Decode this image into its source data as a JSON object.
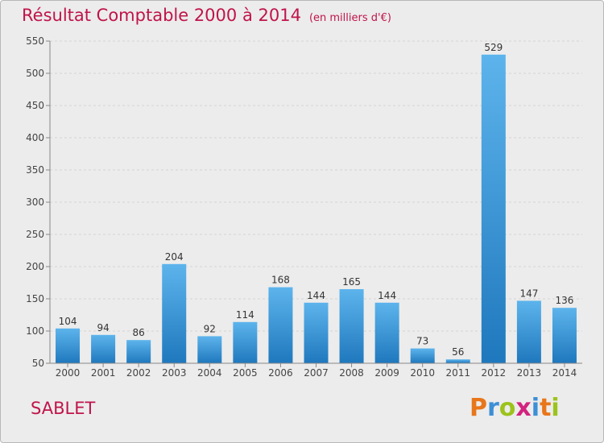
{
  "chart_data": {
    "type": "bar",
    "title": "Résultat Comptable 2000 à 2014",
    "subtitle": "(en milliers d'€)",
    "categories": [
      "2000",
      "2001",
      "2002",
      "2003",
      "2004",
      "2005",
      "2006",
      "2007",
      "2008",
      "2009",
      "2010",
      "2011",
      "2012",
      "2013",
      "2014"
    ],
    "values": [
      104,
      94,
      86,
      204,
      92,
      114,
      168,
      144,
      165,
      144,
      73,
      56,
      529,
      147,
      136
    ],
    "ylim": [
      50,
      550
    ],
    "yticks": [
      50,
      100,
      150,
      200,
      250,
      300,
      350,
      400,
      450,
      500,
      550
    ],
    "grid": true,
    "xlabel": "",
    "ylabel": ""
  },
  "commune": "SABLET",
  "logo": {
    "text": "Proxiti",
    "letter_colors": [
      "#e8761a",
      "#3d8fd6",
      "#9cc31b",
      "#d3237e",
      "#3d8fd6",
      "#e8761a",
      "#9cc31b"
    ]
  },
  "colors": {
    "title": "#c0144a",
    "bar_light": "#5db4ec",
    "bar_dark": "#1f78bd",
    "background": "#ececec"
  }
}
